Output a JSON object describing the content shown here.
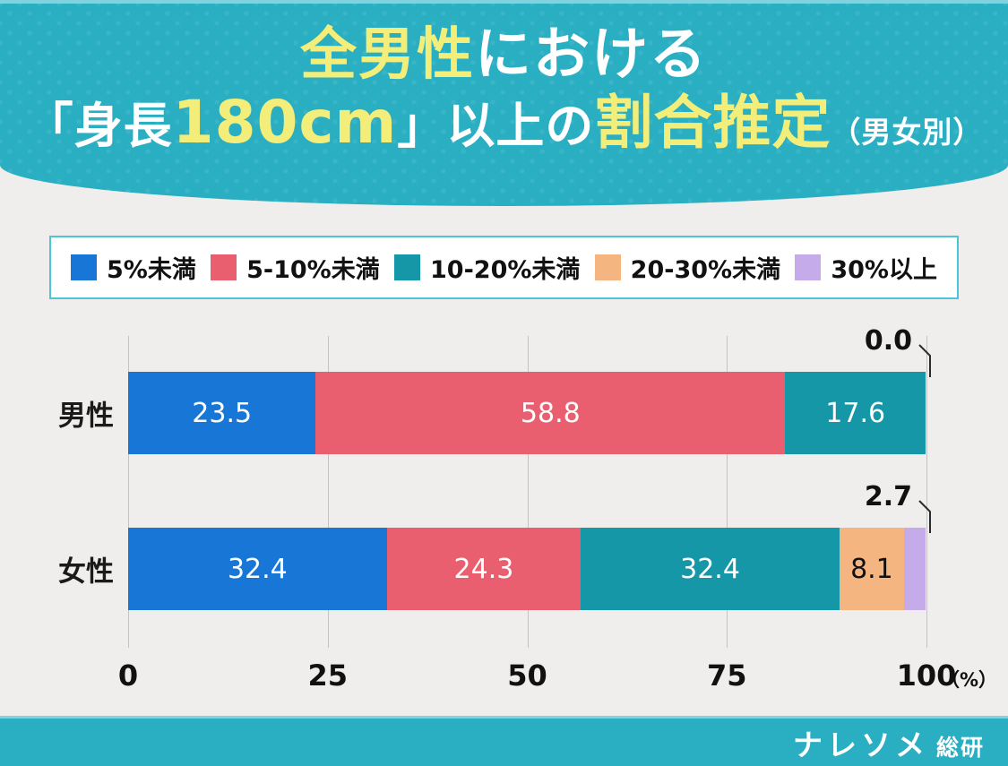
{
  "theme": {
    "banner_cyan": "#29AEC2",
    "banner_top_strip": "#7FD2DE",
    "accent_yellow": "#F2EE79",
    "page_bg": "#EFEEEC",
    "gridline": "#C3C3C3",
    "legend_border": "#4CC5D8",
    "text_dark": "#111111"
  },
  "header": {
    "line1": {
      "highlight": "全男性",
      "rest": "における"
    },
    "line2": {
      "pre": "「身長",
      "num": "180cm",
      "mid": "」以上の",
      "strong": "割合推定",
      "suffix": "（男女別）"
    }
  },
  "chart_data": {
    "type": "bar",
    "orientation": "horizontal",
    "stacked": true,
    "title": "全男性における「身長180cm」以上の割合推定（男女別）",
    "categories": [
      "男性",
      "女性"
    ],
    "legend": [
      {
        "label": "5%未満",
        "color": "#1877D6"
      },
      {
        "label": "5-10%未満",
        "color": "#EA5F6F"
      },
      {
        "label": "10-20%未満",
        "color": "#1697A7"
      },
      {
        "label": "20-30%未満",
        "color": "#F4B581"
      },
      {
        "label": "30%以上",
        "color": "#C5ABEA"
      }
    ],
    "legend_position": "top",
    "grid": true,
    "xlim": [
      0,
      100
    ],
    "xticks": [
      0,
      25,
      50,
      75,
      100
    ],
    "x_unit": "（%）",
    "rows": [
      {
        "category": "男性",
        "values": [
          23.5,
          58.8,
          17.6,
          0.0,
          0.0
        ],
        "labels": [
          {
            "text": "23.5",
            "placement": "inside",
            "color": "#ffffff"
          },
          {
            "text": "58.8",
            "placement": "inside",
            "color": "#ffffff"
          },
          {
            "text": "17.6",
            "placement": "inside",
            "color": "#ffffff"
          },
          null,
          {
            "text": "0.0",
            "placement": "callout",
            "color": "#111111"
          }
        ]
      },
      {
        "category": "女性",
        "values": [
          32.4,
          24.3,
          32.4,
          8.1,
          2.7
        ],
        "labels": [
          {
            "text": "32.4",
            "placement": "inside",
            "color": "#ffffff"
          },
          {
            "text": "24.3",
            "placement": "inside",
            "color": "#ffffff"
          },
          {
            "text": "32.4",
            "placement": "inside",
            "color": "#ffffff"
          },
          {
            "text": "8.1",
            "placement": "inside",
            "color": "#111111"
          },
          {
            "text": "2.7",
            "placement": "callout",
            "color": "#111111"
          }
        ]
      }
    ]
  },
  "footer": {
    "brand_main": "ナレソメ",
    "brand_sub": "総研"
  }
}
